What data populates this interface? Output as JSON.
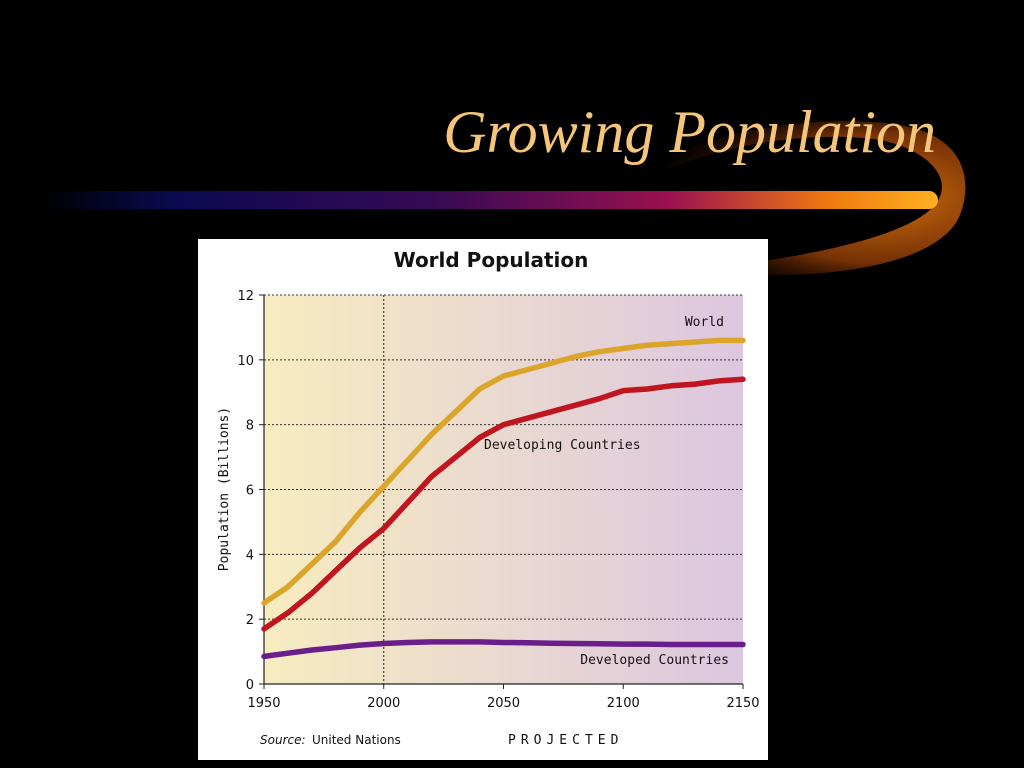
{
  "slide": {
    "title": "Growing Population"
  },
  "colors": {
    "background": "#000000",
    "title": "#f5c57a",
    "world": "#dba42a",
    "developing": "#c0141e",
    "developed": "#6a1e8c",
    "plot_left": "#f7ecc0",
    "plot_right": "#dcc6e0"
  },
  "chart_data": {
    "type": "line",
    "title": "World Population",
    "xlabel": "",
    "ylabel": "Population (Billions)",
    "xlim": [
      1950,
      2150
    ],
    "ylim": [
      0,
      12
    ],
    "xticks": [
      "1950",
      "2000",
      "2050",
      "2100",
      "2150"
    ],
    "yticks": [
      "0",
      "2",
      "4",
      "6",
      "8",
      "10",
      "12"
    ],
    "grid": true,
    "divider_x": 2000,
    "series": [
      {
        "name": "World",
        "color": "#dba42a",
        "x": [
          1950,
          1960,
          1970,
          1980,
          1990,
          2000,
          2010,
          2020,
          2030,
          2040,
          2050,
          2060,
          2070,
          2080,
          2090,
          2100,
          2110,
          2120,
          2130,
          2140,
          2150
        ],
        "y": [
          2.5,
          3.0,
          3.7,
          4.4,
          5.3,
          6.1,
          6.9,
          7.7,
          8.4,
          9.1,
          9.5,
          9.7,
          9.9,
          10.1,
          10.25,
          10.35,
          10.45,
          10.5,
          10.55,
          10.6,
          10.6
        ]
      },
      {
        "name": "Developing Countries",
        "color": "#c0141e",
        "x": [
          1950,
          1960,
          1970,
          1980,
          1990,
          2000,
          2010,
          2020,
          2030,
          2040,
          2050,
          2060,
          2070,
          2080,
          2090,
          2100,
          2110,
          2120,
          2130,
          2140,
          2150
        ],
        "y": [
          1.7,
          2.2,
          2.8,
          3.5,
          4.2,
          4.8,
          5.6,
          6.4,
          7.0,
          7.6,
          8.0,
          8.2,
          8.4,
          8.6,
          8.8,
          9.05,
          9.1,
          9.2,
          9.25,
          9.35,
          9.4
        ]
      },
      {
        "name": "Developed Countries",
        "color": "#6a1e8c",
        "x": [
          1950,
          1960,
          1970,
          1980,
          1990,
          2000,
          2010,
          2020,
          2030,
          2040,
          2050,
          2060,
          2070,
          2080,
          2090,
          2100,
          2110,
          2120,
          2130,
          2140,
          2150
        ],
        "y": [
          0.85,
          0.95,
          1.05,
          1.12,
          1.2,
          1.25,
          1.28,
          1.3,
          1.3,
          1.3,
          1.28,
          1.27,
          1.26,
          1.25,
          1.24,
          1.23,
          1.23,
          1.22,
          1.22,
          1.22,
          1.22
        ]
      }
    ],
    "source_label": "Source:",
    "source_value": "United Nations",
    "projected_label": "PROJECTED"
  }
}
